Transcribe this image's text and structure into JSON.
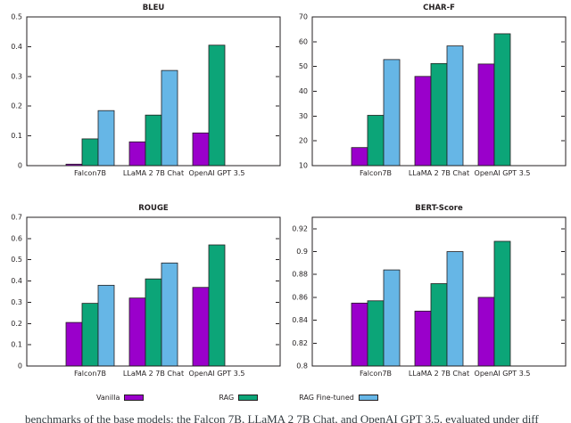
{
  "figure": {
    "caption_clipped": "benchmarks of the base models: the Falcon 7B, LLaMA 2 7B Chat, and OpenAI GPT 3.5, evaluated under diff"
  },
  "legend": {
    "position": "bottom-shared",
    "entries": [
      {
        "label": "Vanilla",
        "color": "#9a00cb"
      },
      {
        "label": "RAG",
        "color": "#0ca578"
      },
      {
        "label": "RAG Fine-tuned",
        "color": "#66b6e6"
      }
    ]
  },
  "style": {
    "frame_color": "#231f20",
    "bar_edge_color": "#231f20",
    "background": "#ffffff"
  },
  "chart_data": [
    {
      "type": "bar",
      "title": "BLEU",
      "categories": [
        "Falcon7B",
        "LLaMA 2 7B Chat",
        "OpenAI GPT 3.5"
      ],
      "series": [
        {
          "name": "Vanilla",
          "values": [
            0.005,
            0.08,
            0.11
          ]
        },
        {
          "name": "RAG",
          "values": [
            0.09,
            0.17,
            0.405
          ]
        },
        {
          "name": "RAG Fine-tuned",
          "values": [
            0.185,
            0.32,
            null
          ]
        }
      ],
      "ylim": [
        0,
        0.5
      ],
      "yticks": [
        "0",
        "0.1",
        "0.2",
        "0.3",
        "0.4",
        "0.5"
      ],
      "grid": false
    },
    {
      "type": "bar",
      "title": "CHAR-F",
      "categories": [
        "Falcon7B",
        "LLaMA 2 7B Chat",
        "OpenAI GPT 3.5"
      ],
      "series": [
        {
          "name": "Vanilla",
          "values": [
            17.3,
            46,
            51
          ]
        },
        {
          "name": "RAG",
          "values": [
            30.3,
            51.2,
            63.2
          ]
        },
        {
          "name": "RAG Fine-tuned",
          "values": [
            52.8,
            58.3,
            null
          ]
        }
      ],
      "ylim": [
        10,
        70
      ],
      "yticks": [
        "10",
        "20",
        "30",
        "40",
        "50",
        "60",
        "70"
      ],
      "grid": false
    },
    {
      "type": "bar",
      "title": "ROUGE",
      "categories": [
        "Falcon7B",
        "LLaMA 2 7B Chat",
        "OpenAI GPT 3.5"
      ],
      "series": [
        {
          "name": "Vanilla",
          "values": [
            0.205,
            0.32,
            0.37
          ]
        },
        {
          "name": "RAG",
          "values": [
            0.295,
            0.41,
            0.57
          ]
        },
        {
          "name": "RAG Fine-tuned",
          "values": [
            0.38,
            0.485,
            null
          ]
        }
      ],
      "ylim": [
        0,
        0.7
      ],
      "yticks": [
        "0",
        "0.1",
        "0.2",
        "0.3",
        "0.4",
        "0.5",
        "0.6",
        "0.7"
      ],
      "grid": false
    },
    {
      "type": "bar",
      "title": "BERT-Score",
      "categories": [
        "Falcon7B",
        "LLaMA 2 7B Chat",
        "OpenAI GPT 3.5"
      ],
      "series": [
        {
          "name": "Vanilla",
          "values": [
            0.855,
            0.848,
            0.86
          ]
        },
        {
          "name": "RAG",
          "values": [
            0.857,
            0.872,
            0.909
          ]
        },
        {
          "name": "RAG Fine-tuned",
          "values": [
            0.884,
            0.9,
            null
          ]
        }
      ],
      "ylim": [
        0.8,
        0.93
      ],
      "yticks": [
        "0.8",
        "0.82",
        "0.84",
        "0.86",
        "0.88",
        "0.9",
        "0.92"
      ],
      "grid": false
    }
  ]
}
